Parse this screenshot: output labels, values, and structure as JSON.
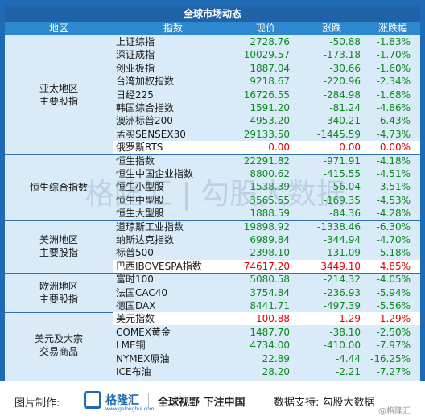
{
  "title": "全球市场动态",
  "headers": [
    "地区",
    "指数",
    "现价",
    "涨跌",
    "涨跌幅"
  ],
  "regions": [
    {
      "label": "亚太地区\n主要股指",
      "rows": 9
    },
    {
      "label": "恒生综合指数",
      "rows": 5
    },
    {
      "label": "美洲地区\n主要股指",
      "rows": 4
    },
    {
      "label": "欧洲地区\n主要股指",
      "rows": 3
    },
    {
      "label": "美元及大宗\n交易商品",
      "rows": 5
    }
  ],
  "rows": [
    {
      "name": "上证综指",
      "price": "2728.76",
      "chg": "-50.88",
      "pct": "-1.83%",
      "color": "green"
    },
    {
      "name": "深证成指",
      "price": "10029.57",
      "chg": "-173.18",
      "pct": "-1.70%",
      "color": "green"
    },
    {
      "name": "创业板指",
      "price": "1887.04",
      "chg": "-30.66",
      "pct": "-1.60%",
      "color": "green"
    },
    {
      "name": "台湾加权指数",
      "price": "9218.67",
      "chg": "-220.96",
      "pct": "-2.34%",
      "color": "green"
    },
    {
      "name": "日经225",
      "price": "16726.55",
      "chg": "-284.98",
      "pct": "-1.68%",
      "color": "green"
    },
    {
      "name": "韩国综合指数",
      "price": "1591.20",
      "chg": "-81.24",
      "pct": "-4.86%",
      "color": "green"
    },
    {
      "name": "澳洲标普200",
      "price": "4953.20",
      "chg": "-340.21",
      "pct": "-6.43%",
      "color": "green"
    },
    {
      "name": "孟买SENSEX30",
      "price": "29133.50",
      "chg": "-1445.59",
      "pct": "-4.73%",
      "color": "green"
    },
    {
      "name": "俄罗斯RTS",
      "price": "0.00",
      "chg": "0.00",
      "pct": "0.00%",
      "color": "red"
    },
    {
      "name": "恒生指数",
      "price": "22291.82",
      "chg": "-971.91",
      "pct": "-4.18%",
      "color": "green"
    },
    {
      "name": "恒生中国企业指数",
      "price": "8800.62",
      "chg": "-415.55",
      "pct": "-4.51%",
      "color": "green"
    },
    {
      "name": "恒生小型股",
      "price": "1538.39",
      "chg": "-56.04",
      "pct": "-3.51%",
      "color": "green"
    },
    {
      "name": "恒生中型股",
      "price": "3565.55",
      "chg": "-169.35",
      "pct": "-4.53%",
      "color": "green"
    },
    {
      "name": "恒生大型股",
      "price": "1888.59",
      "chg": "-84.36",
      "pct": "-4.28%",
      "color": "green"
    },
    {
      "name": "道琼斯工业指数",
      "price": "19898.92",
      "chg": "-1338.46",
      "pct": "-6.30%",
      "color": "green"
    },
    {
      "name": "纳斯达克指数",
      "price": "6989.84",
      "chg": "-344.94",
      "pct": "-4.70%",
      "color": "green"
    },
    {
      "name": "标普500",
      "price": "2398.10",
      "chg": "-131.09",
      "pct": "-5.18%",
      "color": "green"
    },
    {
      "name": "巴西IBOVESPA指数",
      "price": "74617.20",
      "chg": "3449.10",
      "pct": "4.85%",
      "color": "red"
    },
    {
      "name": "富时100",
      "price": "5080.58",
      "chg": "-214.32",
      "pct": "-4.05%",
      "color": "green"
    },
    {
      "name": "法国CAC40",
      "price": "3754.84",
      "chg": "-236.93",
      "pct": "-5.94%",
      "color": "green"
    },
    {
      "name": "德国DAX",
      "price": "8441.71",
      "chg": "-497.39",
      "pct": "-5.56%",
      "color": "green"
    },
    {
      "name": "美元指数",
      "price": "100.88",
      "chg": "1.29",
      "pct": "1.29%",
      "color": "red"
    },
    {
      "name": "COMEX黄金",
      "price": "1487.70",
      "chg": "-38.10",
      "pct": "-2.50%",
      "color": "green"
    },
    {
      "name": "LME铜",
      "price": "4734.00",
      "chg": "-410.00",
      "pct": "-7.97%",
      "color": "green"
    },
    {
      "name": "NYMEX原油",
      "price": "22.89",
      "chg": "-4.44",
      "pct": "-16.25%",
      "color": "green"
    },
    {
      "name": "ICE布油",
      "price": "28.20",
      "chg": "-2.21",
      "pct": "-7.27%",
      "color": "green"
    }
  ],
  "watermark": "格隆汇 | 勾股大数据",
  "footer": {
    "made_by": "图片制作:",
    "brand": "格隆汇",
    "brand_url": "www.gelonghui.com",
    "slogan": "全球视野 下注中国",
    "support": "数据支持: 勾股大数据",
    "corner_mark": "@格隆汇"
  }
}
